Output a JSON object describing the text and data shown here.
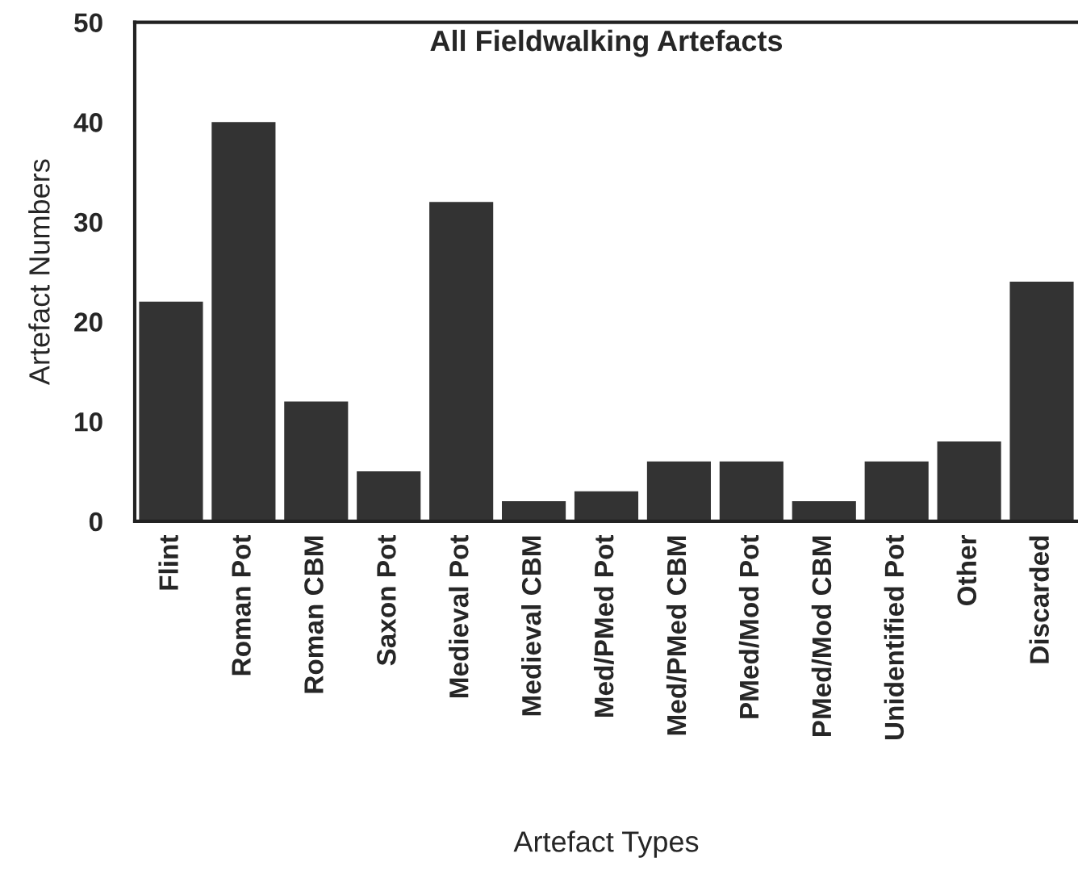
{
  "chart_data": {
    "type": "bar",
    "title": "All Fieldwalking Artefacts",
    "xlabel": "Artefact Types",
    "ylabel": "Artefact Numbers",
    "categories": [
      "Flint",
      "Roman Pot",
      "Roman CBM",
      "Saxon Pot",
      "Medieval Pot",
      "Medieval CBM",
      "Med/PMed Pot",
      "Med/PMed CBM",
      "PMed/Mod Pot",
      "PMed/Mod CBM",
      "Unidentified Pot",
      "Other",
      "Discarded"
    ],
    "values": [
      22,
      40,
      12,
      5,
      32,
      2,
      3,
      6,
      6,
      2,
      6,
      8,
      24
    ],
    "color": "#333333",
    "ylim": [
      0,
      50
    ],
    "yticks": [
      0,
      10,
      20,
      30,
      40,
      50
    ],
    "grid": false
  }
}
